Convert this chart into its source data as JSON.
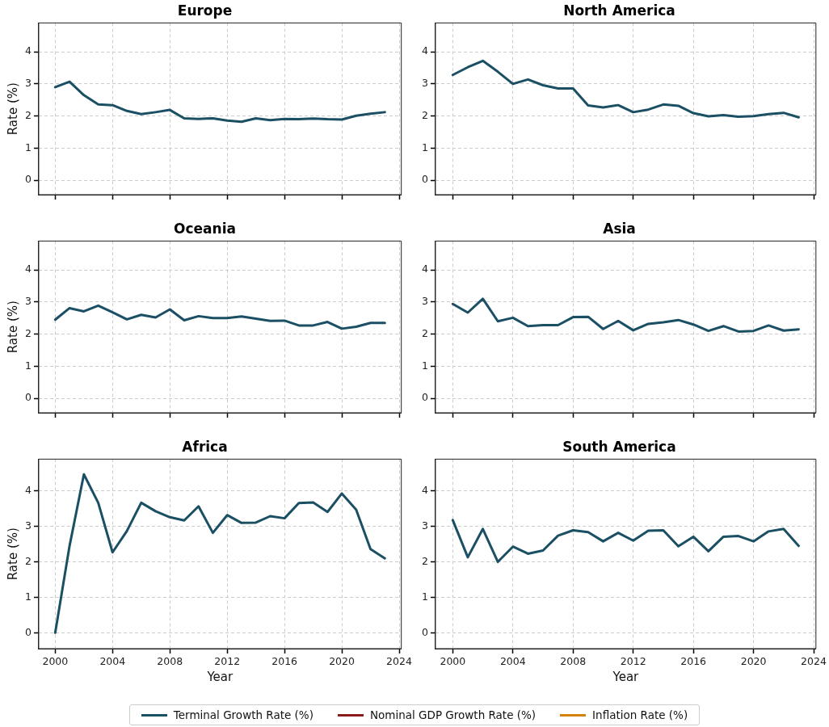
{
  "chart_data": [
    {
      "type": "line",
      "title": "Europe",
      "ylabel": "Rate (%)",
      "x": [
        2000,
        2001,
        2002,
        2003,
        2004,
        2005,
        2006,
        2007,
        2008,
        2009,
        2010,
        2011,
        2012,
        2013,
        2014,
        2015,
        2016,
        2017,
        2018,
        2019,
        2020,
        2021,
        2022,
        2023
      ],
      "xlim": [
        1998.85,
        2024.15
      ],
      "xticks": [
        2000,
        2004,
        2008,
        2012,
        2016,
        2020,
        2024
      ],
      "ylim": [
        -0.45,
        4.9
      ],
      "yticks": [
        0,
        1,
        2,
        3,
        4
      ],
      "grid": true,
      "legend": "bottom",
      "tick_labels": "y",
      "series": [
        {
          "name": "Terminal Growth Rate (%)",
          "color": "#1b4f63",
          "values": [
            2.9,
            3.07,
            2.65,
            2.36,
            2.34,
            2.16,
            2.06,
            2.12,
            2.19,
            1.93,
            1.91,
            1.93,
            1.86,
            1.82,
            1.93,
            1.87,
            1.91,
            1.9,
            1.92,
            1.9,
            1.89,
            2.01,
            2.07,
            2.12
          ]
        },
        {
          "name": "Nominal GDP Growth Rate (%)",
          "color": "#8b1a1a",
          "values": [
            null,
            null,
            null,
            null,
            null,
            null,
            null,
            null,
            null,
            null,
            null,
            null,
            null,
            null,
            null,
            null,
            null,
            null,
            null,
            null,
            null,
            null,
            null,
            null
          ]
        },
        {
          "name": "Inflation Rate (%)",
          "color": "#d4820a",
          "values": [
            null,
            null,
            null,
            null,
            null,
            null,
            null,
            null,
            null,
            null,
            null,
            null,
            null,
            null,
            null,
            null,
            null,
            null,
            null,
            null,
            null,
            null,
            null,
            null
          ]
        }
      ]
    },
    {
      "type": "line",
      "title": "North America",
      "x": [
        2000,
        2001,
        2002,
        2003,
        2004,
        2005,
        2006,
        2007,
        2008,
        2009,
        2010,
        2011,
        2012,
        2013,
        2014,
        2015,
        2016,
        2017,
        2018,
        2019,
        2020,
        2021,
        2022,
        2023
      ],
      "xlim": [
        1998.85,
        2024.15
      ],
      "xticks": [
        2000,
        2004,
        2008,
        2012,
        2016,
        2020,
        2024
      ],
      "ylim": [
        -0.45,
        4.9
      ],
      "yticks": [
        0,
        1,
        2,
        3,
        4
      ],
      "grid": true,
      "tick_labels": "y",
      "series": [
        {
          "color": "#1b4f63",
          "values": [
            3.28,
            3.52,
            3.72,
            3.38,
            3.0,
            3.14,
            2.96,
            2.86,
            2.86,
            2.33,
            2.27,
            2.34,
            2.12,
            2.2,
            2.36,
            2.32,
            2.09,
            1.99,
            2.03,
            1.98,
            2.0,
            2.06,
            2.1,
            1.96
          ]
        }
      ]
    },
    {
      "type": "line",
      "title": "Oceania",
      "ylabel": "Rate (%)",
      "x": [
        2000,
        2001,
        2002,
        2003,
        2004,
        2005,
        2006,
        2007,
        2008,
        2009,
        2010,
        2011,
        2012,
        2013,
        2014,
        2015,
        2016,
        2017,
        2018,
        2019,
        2020,
        2021,
        2022,
        2023
      ],
      "xlim": [
        1998.85,
        2024.15
      ],
      "xticks": [
        2000,
        2004,
        2008,
        2012,
        2016,
        2020,
        2024
      ],
      "ylim": [
        -0.45,
        4.9
      ],
      "yticks": [
        0,
        1,
        2,
        3,
        4
      ],
      "grid": true,
      "tick_labels": "y",
      "series": [
        {
          "color": "#1b4f63",
          "values": [
            2.45,
            2.81,
            2.71,
            2.89,
            2.68,
            2.46,
            2.6,
            2.52,
            2.77,
            2.43,
            2.56,
            2.5,
            2.5,
            2.55,
            2.48,
            2.41,
            2.42,
            2.27,
            2.27,
            2.38,
            2.17,
            2.23,
            2.35,
            2.35
          ]
        }
      ]
    },
    {
      "type": "line",
      "title": "Asia",
      "x": [
        2000,
        2001,
        2002,
        2003,
        2004,
        2005,
        2006,
        2007,
        2008,
        2009,
        2010,
        2011,
        2012,
        2013,
        2014,
        2015,
        2016,
        2017,
        2018,
        2019,
        2020,
        2021,
        2022,
        2023
      ],
      "xlim": [
        1998.85,
        2024.15
      ],
      "xticks": [
        2000,
        2004,
        2008,
        2012,
        2016,
        2020,
        2024
      ],
      "ylim": [
        -0.45,
        4.9
      ],
      "yticks": [
        0,
        1,
        2,
        3,
        4
      ],
      "grid": true,
      "tick_labels": "y",
      "series": [
        {
          "color": "#1b4f63",
          "values": [
            2.94,
            2.67,
            3.1,
            2.4,
            2.51,
            2.25,
            2.28,
            2.28,
            2.53,
            2.54,
            2.16,
            2.41,
            2.12,
            2.32,
            2.37,
            2.44,
            2.3,
            2.1,
            2.25,
            2.08,
            2.1,
            2.27,
            2.11,
            2.15
          ]
        }
      ]
    },
    {
      "type": "line",
      "title": "Africa",
      "xlabel": "Year",
      "ylabel": "Rate (%)",
      "x": [
        2000,
        2001,
        2002,
        2003,
        2004,
        2005,
        2006,
        2007,
        2008,
        2009,
        2010,
        2011,
        2012,
        2013,
        2014,
        2015,
        2016,
        2017,
        2018,
        2019,
        2020,
        2021,
        2022,
        2023
      ],
      "xlim": [
        1998.85,
        2024.15
      ],
      "xticks": [
        2000,
        2004,
        2008,
        2012,
        2016,
        2020,
        2024
      ],
      "ylim": [
        -0.45,
        4.9
      ],
      "yticks": [
        0,
        1,
        2,
        3,
        4
      ],
      "grid": true,
      "series": [
        {
          "color": "#1b4f63",
          "values": [
            0.0,
            2.45,
            4.47,
            3.67,
            2.27,
            2.87,
            3.67,
            3.43,
            3.26,
            3.17,
            3.57,
            2.82,
            3.32,
            3.1,
            3.11,
            3.29,
            3.23,
            3.66,
            3.68,
            3.41,
            3.93,
            3.47,
            2.36,
            2.1
          ]
        }
      ]
    },
    {
      "type": "line",
      "title": "South America",
      "xlabel": "Year",
      "x": [
        2000,
        2001,
        2002,
        2003,
        2004,
        2005,
        2006,
        2007,
        2008,
        2009,
        2010,
        2011,
        2012,
        2013,
        2014,
        2015,
        2016,
        2017,
        2018,
        2019,
        2020,
        2021,
        2022,
        2023
      ],
      "xlim": [
        1998.85,
        2024.15
      ],
      "xticks": [
        2000,
        2004,
        2008,
        2012,
        2016,
        2020,
        2024
      ],
      "ylim": [
        -0.45,
        4.9
      ],
      "yticks": [
        0,
        1,
        2,
        3,
        4
      ],
      "grid": true,
      "series": [
        {
          "color": "#1b4f63",
          "values": [
            3.18,
            2.13,
            2.93,
            2.0,
            2.43,
            2.23,
            2.32,
            2.74,
            2.89,
            2.84,
            2.58,
            2.82,
            2.6,
            2.88,
            2.89,
            2.44,
            2.71,
            2.3,
            2.71,
            2.73,
            2.58,
            2.86,
            2.93,
            2.45
          ]
        }
      ]
    }
  ]
}
